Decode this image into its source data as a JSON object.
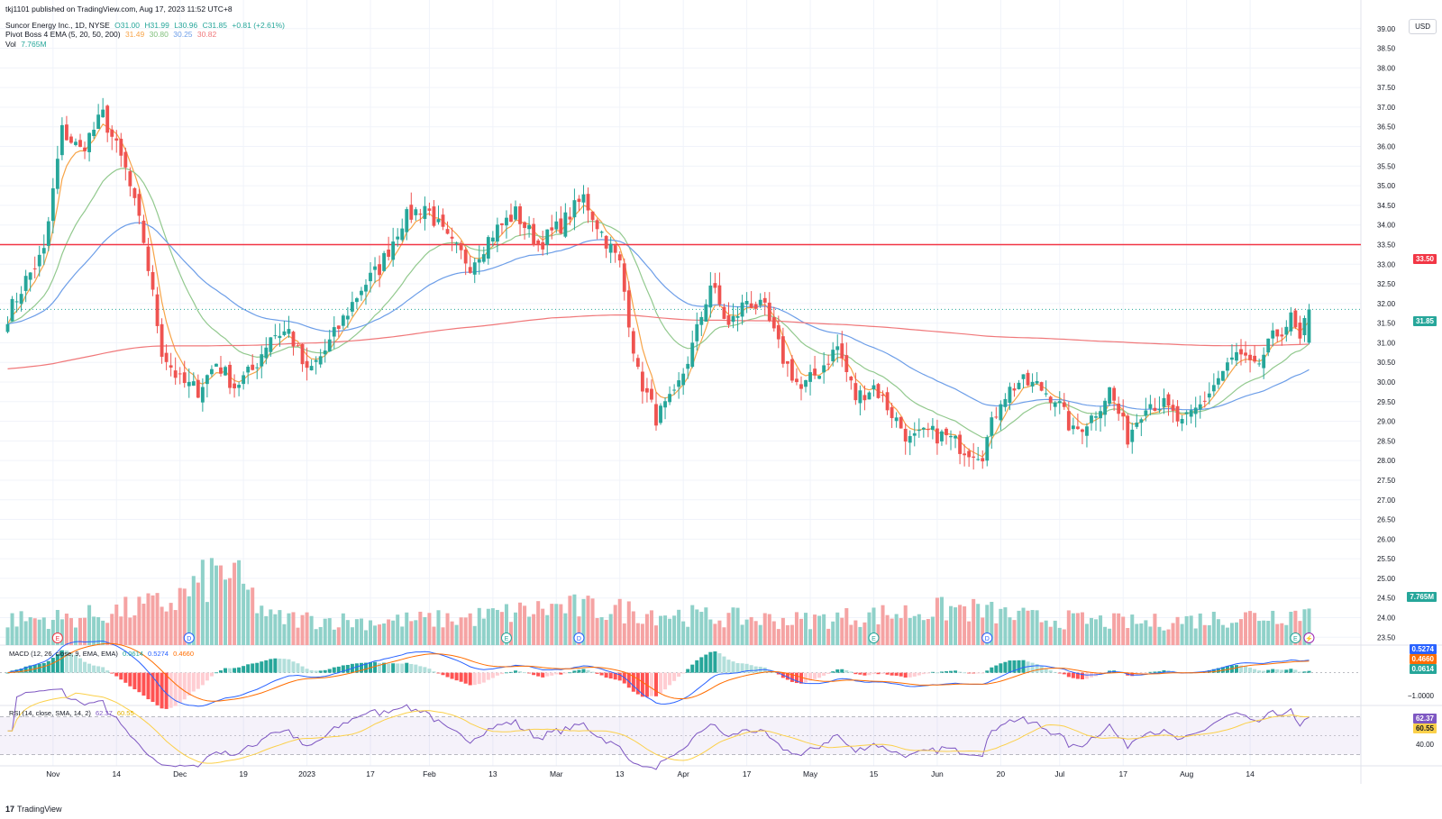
{
  "publisher": "tkj1101 published on TradingView.com, Aug 17, 2023 11:52 UTC+8",
  "symbol": {
    "name": "Suncor Energy Inc., 1D, NYSE",
    "open": "O31.00",
    "high": "H31.99",
    "low": "L30.96",
    "close": "C31.85",
    "change": "+0.81 (+2.61%)"
  },
  "ema_legend": {
    "label": "Pivot Boss 4 EMA (5, 20, 50, 200)",
    "v5": "31.49",
    "v20": "30.80",
    "v50": "30.25",
    "v200": "30.82"
  },
  "vol_legend": {
    "label": "Vol",
    "value": "7.765M"
  },
  "macd_legend": {
    "label": "MACD (12, 26, close, 9, EMA, EMA)",
    "hist": "0.0614",
    "macd": "0.5274",
    "signal": "0.4660"
  },
  "rsi_legend": {
    "label": "RSI (14, close, SMA, 14, 2)",
    "rsi": "62.37",
    "sma": "60.55"
  },
  "currency_button": "USD",
  "price_badges": {
    "resistance": "33.50",
    "last": "31.85",
    "volume": "7.765M"
  },
  "macd_badges": {
    "macd": "0.5274",
    "signal": "0.4660",
    "hist": "0.0614",
    "axis_label": "−1.0000"
  },
  "rsi_badges": {
    "rsi": "62.37",
    "sma": "60.55",
    "axis_label": "40.00"
  },
  "footer": {
    "logo_mark": "17",
    "logo_text": "TradingView"
  },
  "colors": {
    "up": "#26a69a",
    "down": "#ef5350",
    "vol_up": "#8fd1c9",
    "vol_down": "#f5a3a3",
    "ema5": "#f7a448",
    "ema20": "#92c98e",
    "ema50": "#6d9ee8",
    "ema200": "#f0787a",
    "resistance": "#f23645",
    "macd": "#2962ff",
    "signal": "#ff6d00",
    "rsi": "#7e57c2",
    "rsi_sma": "#fbd04a"
  },
  "chart_data": [
    {
      "type": "candlestick",
      "title": "Suncor Energy Inc., 1D, NYSE",
      "ylim": [
        23.3,
        39.5
      ],
      "y_ticks": [
        "39.00",
        "38.50",
        "38.00",
        "37.50",
        "37.00",
        "36.50",
        "36.00",
        "35.50",
        "35.00",
        "34.50",
        "34.00",
        "33.50",
        "33.00",
        "32.50",
        "32.00",
        "31.50",
        "31.00",
        "30.50",
        "30.00",
        "29.50",
        "29.00",
        "28.50",
        "28.00",
        "27.50",
        "27.00",
        "26.50",
        "26.00",
        "25.50",
        "25.00",
        "24.50",
        "24.00",
        "23.50"
      ],
      "x_ticks": [
        "Nov",
        "14",
        "Dec",
        "19",
        "2023",
        "17",
        "Feb",
        "13",
        "Mar",
        "13",
        "Apr",
        "17",
        "May",
        "15",
        "Jun",
        "20",
        "Jul",
        "17",
        "Aug",
        "14"
      ],
      "close_anchors": [
        [
          0,
          31.7
        ],
        [
          4,
          32.6
        ],
        [
          8,
          33.3
        ],
        [
          12,
          36.4
        ],
        [
          16,
          35.9
        ],
        [
          21,
          36.8
        ],
        [
          26,
          35.4
        ],
        [
          30,
          33.6
        ],
        [
          34,
          30.8
        ],
        [
          38,
          30.0
        ],
        [
          42,
          29.8
        ],
        [
          46,
          30.5
        ],
        [
          50,
          29.9
        ],
        [
          54,
          30.3
        ],
        [
          58,
          31.2
        ],
        [
          62,
          31.3
        ],
        [
          66,
          30.2
        ],
        [
          70,
          30.8
        ],
        [
          74,
          31.6
        ],
        [
          78,
          32.4
        ],
        [
          82,
          32.9
        ],
        [
          87,
          34.1
        ],
        [
          92,
          34.5
        ],
        [
          97,
          33.6
        ],
        [
          102,
          33.0
        ],
        [
          107,
          33.8
        ],
        [
          112,
          34.3
        ],
        [
          117,
          33.5
        ],
        [
          122,
          34.0
        ],
        [
          127,
          34.7
        ],
        [
          131,
          33.8
        ],
        [
          135,
          33.0
        ],
        [
          139,
          30.2
        ],
        [
          143,
          29.1
        ],
        [
          147,
          29.6
        ],
        [
          151,
          30.9
        ],
        [
          155,
          32.5
        ],
        [
          159,
          31.4
        ],
        [
          163,
          32.1
        ],
        [
          167,
          31.8
        ],
        [
          171,
          30.6
        ],
        [
          175,
          29.8
        ],
        [
          179,
          30.3
        ],
        [
          183,
          30.9
        ],
        [
          187,
          29.6
        ],
        [
          191,
          29.9
        ],
        [
          195,
          29.2
        ],
        [
          199,
          28.5
        ],
        [
          203,
          28.7
        ],
        [
          207,
          28.6
        ],
        [
          211,
          28.3
        ],
        [
          215,
          28.2
        ],
        [
          219,
          29.6
        ],
        [
          223,
          30.0
        ],
        [
          227,
          29.9
        ],
        [
          231,
          29.6
        ],
        [
          235,
          28.7
        ],
        [
          239,
          29.1
        ],
        [
          243,
          29.8
        ],
        [
          247,
          28.6
        ],
        [
          251,
          29.5
        ],
        [
          255,
          29.4
        ],
        [
          259,
          28.9
        ],
        [
          263,
          29.4
        ],
        [
          267,
          30.1
        ],
        [
          271,
          30.7
        ],
        [
          275,
          30.3
        ],
        [
          279,
          31.1
        ],
        [
          283,
          31.6
        ],
        [
          285,
          31.0
        ],
        [
          287,
          31.85
        ]
      ],
      "volume_anchors": [
        [
          0,
          6.0
        ],
        [
          15,
          6.4
        ],
        [
          36,
          10.0
        ],
        [
          48,
          18.0
        ],
        [
          58,
          6.4
        ],
        [
          80,
          5.6
        ],
        [
          100,
          6.2
        ],
        [
          122,
          9.0
        ],
        [
          138,
          8.0
        ],
        [
          155,
          6.6
        ],
        [
          175,
          5.8
        ],
        [
          210,
          8.6
        ],
        [
          225,
          6.4
        ],
        [
          250,
          5.2
        ],
        [
          270,
          6.6
        ],
        [
          287,
          7.765
        ]
      ],
      "resistance_level": 33.5,
      "ema_periods": [
        5,
        20,
        50,
        200
      ],
      "event_markers": [
        {
          "bar": 11,
          "label": "E"
        },
        {
          "bar": 40,
          "label": "D"
        },
        {
          "bar": 110,
          "label": "E"
        },
        {
          "bar": 126,
          "label": "D"
        },
        {
          "bar": 191,
          "label": "E"
        },
        {
          "bar": 216,
          "label": "D"
        },
        {
          "bar": 284,
          "label": "E"
        },
        {
          "bar": 287,
          "label": "⚡"
        }
      ]
    },
    {
      "type": "line",
      "title": "MACD (12, 26, close, 9, EMA, EMA)",
      "series": [
        {
          "name": "MACD"
        },
        {
          "name": "Signal"
        },
        {
          "name": "Histogram"
        }
      ],
      "ylim": [
        -1.2,
        1.0
      ]
    },
    {
      "type": "line",
      "title": "RSI (14, close, SMA, 14, 2)",
      "series": [
        {
          "name": "RSI"
        },
        {
          "name": "SMA"
        }
      ],
      "ylim": [
        20,
        80
      ],
      "bands": [
        70,
        30
      ]
    }
  ]
}
